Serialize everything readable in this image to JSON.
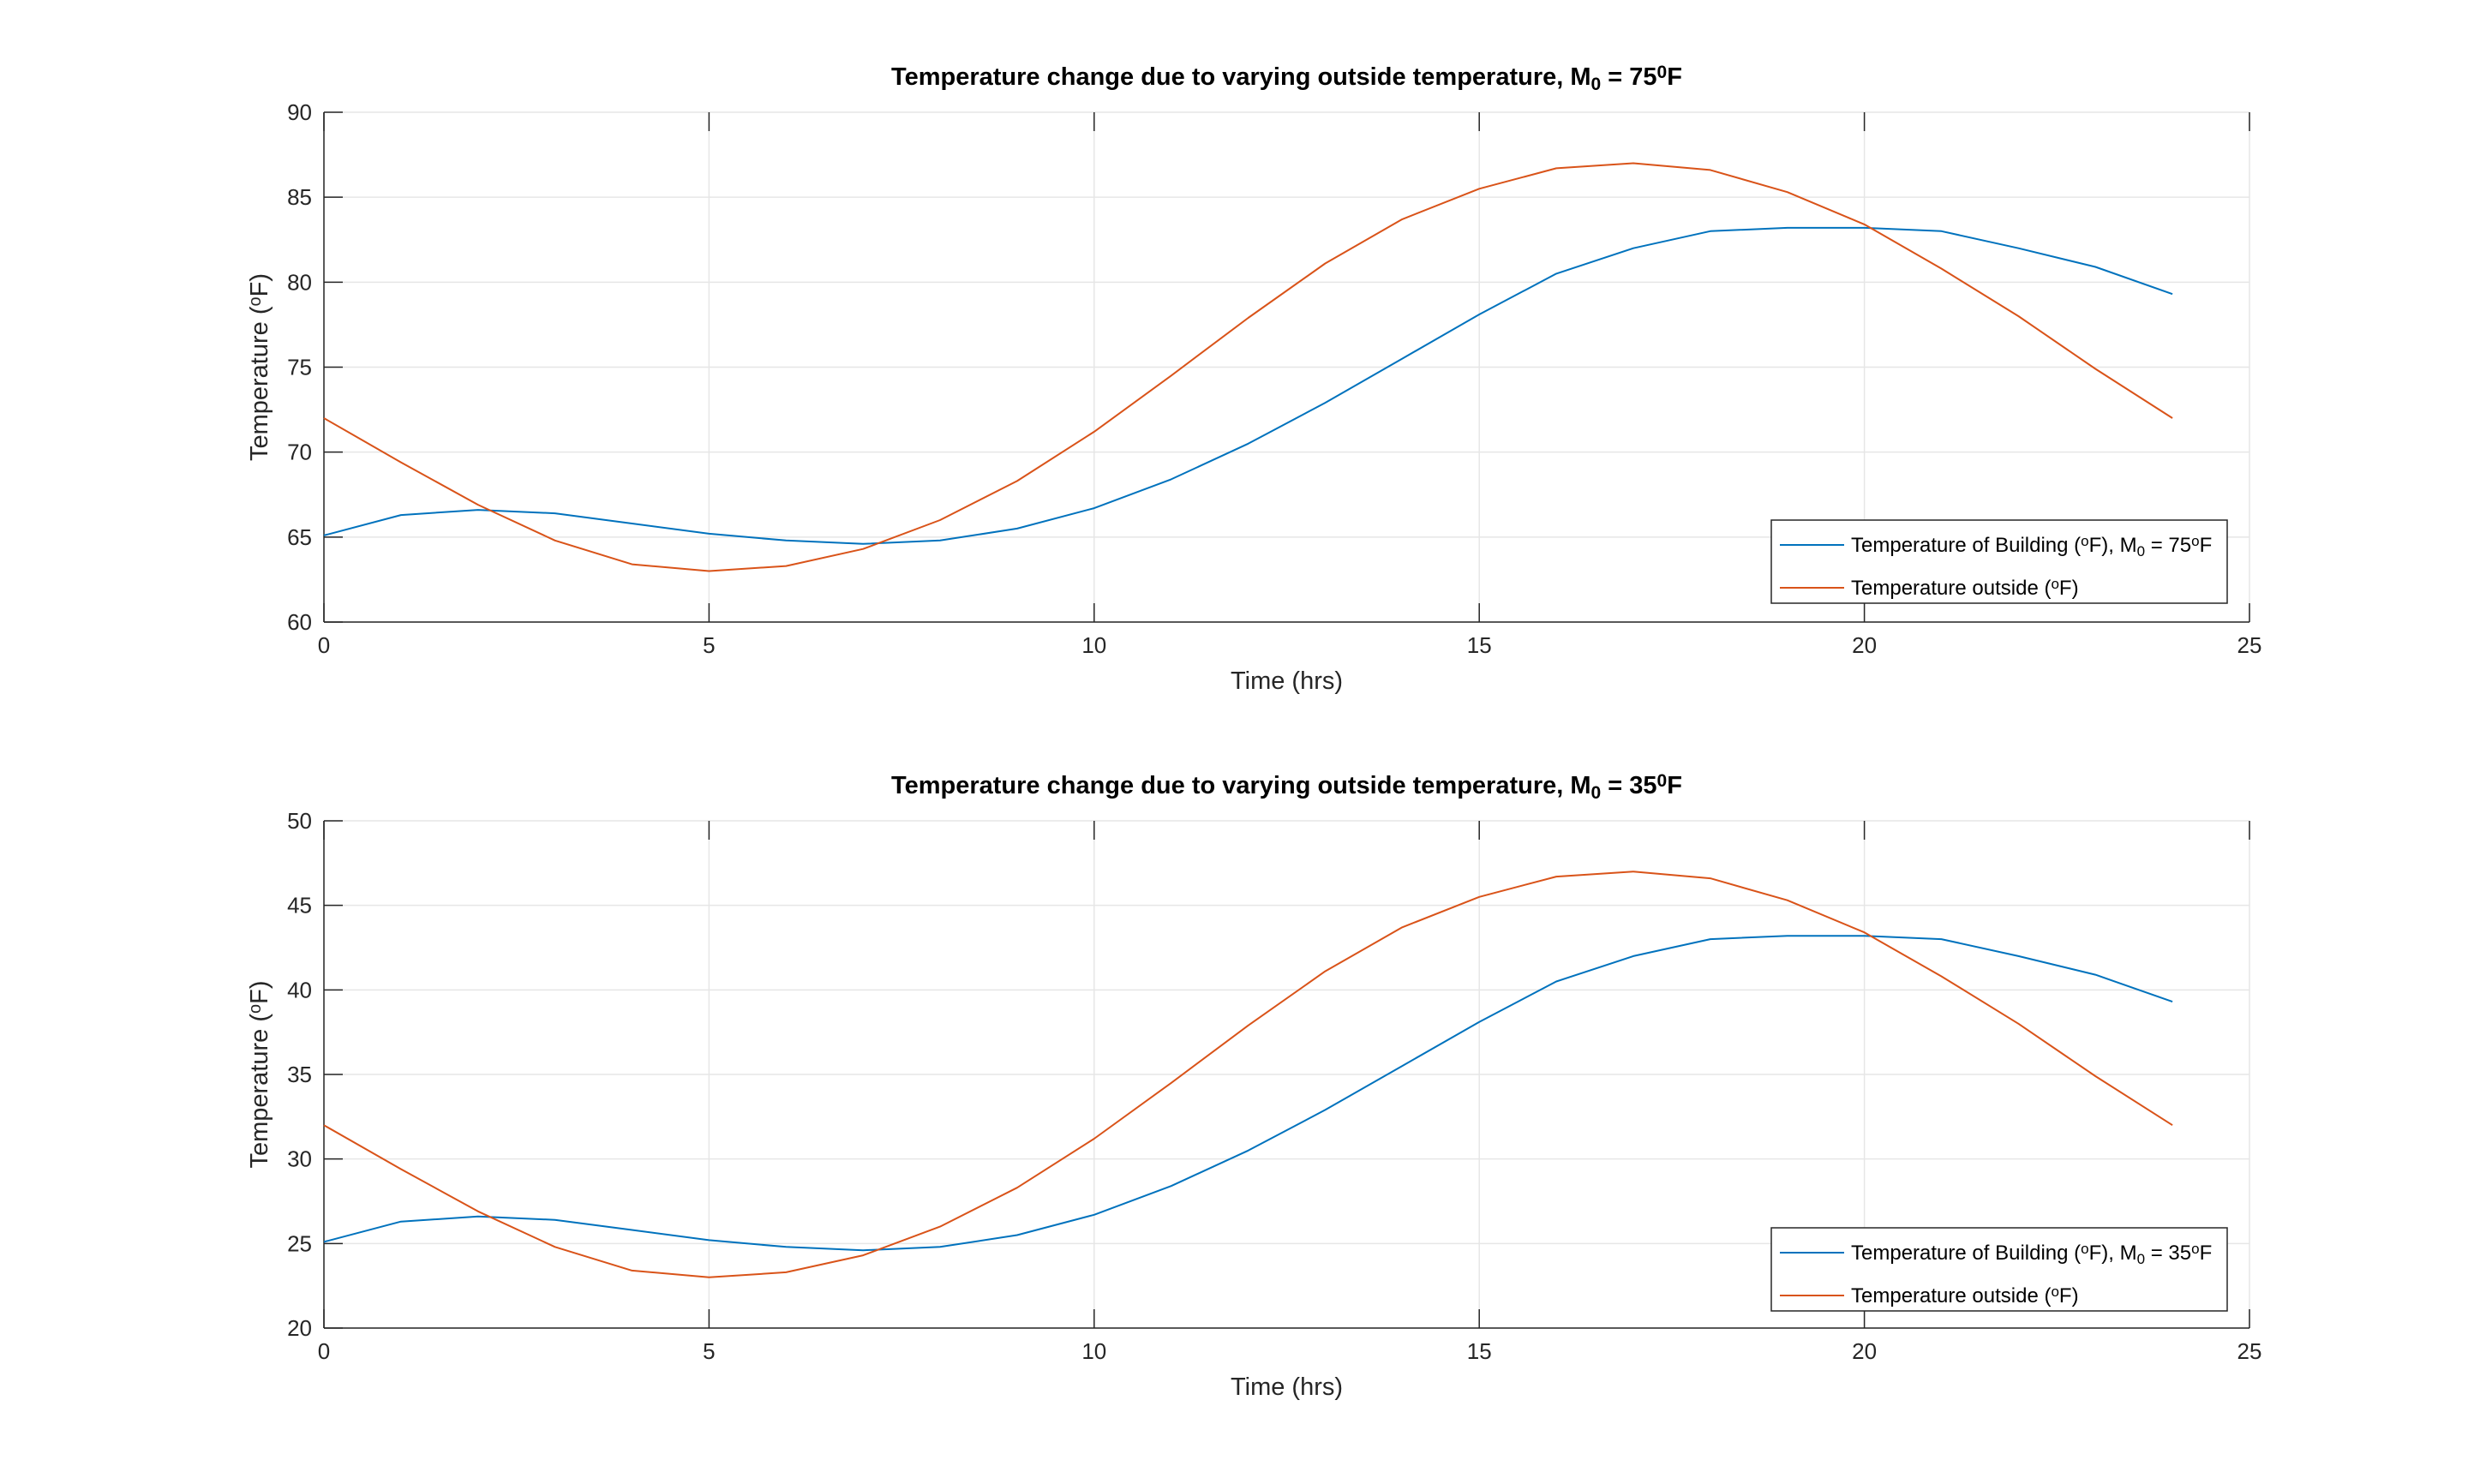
{
  "chart_data": [
    {
      "type": "line",
      "title": {
        "pre": "Temperature change due to varying outside temperature, M",
        "sub": "0",
        "mid": " = 75",
        "sup": "0",
        "post": "F"
      },
      "xlabel": "Time (hrs)",
      "ylabel": {
        "pre": "Temperature (",
        "sup": "o",
        "post": "F)"
      },
      "xlim": [
        0,
        25
      ],
      "ylim": [
        60,
        90
      ],
      "xticks": [
        "0",
        "5",
        "10",
        "15",
        "20",
        "25"
      ],
      "yticks": [
        "60",
        "65",
        "70",
        "75",
        "80",
        "85",
        "90"
      ],
      "grid": true,
      "legend_position": "bottom-right",
      "legend": [
        {
          "pre": "Temperature of Building (",
          "sup1": "o",
          "mid": "F), M",
          "sub": "0",
          "mid2": " = 75",
          "sup2": "o",
          "post": "F"
        },
        {
          "pre": "Temperature outside (",
          "sup1": "o",
          "post": "F)"
        }
      ],
      "series": [
        {
          "color": "#0072BD",
          "x": [
            0,
            1,
            2,
            3,
            4,
            5,
            6,
            7,
            8,
            9,
            10,
            11,
            12,
            13,
            14,
            15,
            16,
            17,
            18,
            19,
            20,
            21,
            22,
            23,
            24
          ],
          "y": [
            65.1,
            66.3,
            66.6,
            66.4,
            65.8,
            65.2,
            64.8,
            64.6,
            64.8,
            65.5,
            66.7,
            68.4,
            70.5,
            72.9,
            75.5,
            78.1,
            80.5,
            82.0,
            83.0,
            83.2,
            83.2,
            83.0,
            82.0,
            80.9,
            79.3
          ]
        },
        {
          "color": "#D95319",
          "x": [
            0,
            1,
            2,
            3,
            4,
            5,
            6,
            7,
            8,
            9,
            10,
            11,
            12,
            13,
            14,
            15,
            16,
            17,
            18,
            19,
            20,
            21,
            22,
            23,
            24
          ],
          "y": [
            72.0,
            69.4,
            66.9,
            64.8,
            63.4,
            63.0,
            63.3,
            64.3,
            66.0,
            68.3,
            71.2,
            74.5,
            77.9,
            81.1,
            83.7,
            85.5,
            86.7,
            87.0,
            86.6,
            85.3,
            83.4,
            80.8,
            78.0,
            74.9,
            72.0
          ]
        }
      ]
    },
    {
      "type": "line",
      "title": {
        "pre": "Temperature change due to varying outside temperature, M",
        "sub": "0",
        "mid": " = 35",
        "sup": "0",
        "post": "F"
      },
      "xlabel": "Time (hrs)",
      "ylabel": {
        "pre": "Temperature (",
        "sup": "o",
        "post": "F)"
      },
      "xlim": [
        0,
        25
      ],
      "ylim": [
        20,
        50
      ],
      "xticks": [
        "0",
        "5",
        "10",
        "15",
        "20",
        "25"
      ],
      "yticks": [
        "20",
        "25",
        "30",
        "35",
        "40",
        "45",
        "50"
      ],
      "grid": true,
      "legend_position": "bottom-right",
      "legend": [
        {
          "pre": "Temperature of Building (",
          "sup1": "o",
          "mid": "F), M",
          "sub": "0",
          "mid2": " = 35",
          "sup2": "o",
          "post": "F"
        },
        {
          "pre": "Temperature outside (",
          "sup1": "o",
          "post": "F)"
        }
      ],
      "series": [
        {
          "color": "#0072BD",
          "x": [
            0,
            1,
            2,
            3,
            4,
            5,
            6,
            7,
            8,
            9,
            10,
            11,
            12,
            13,
            14,
            15,
            16,
            17,
            18,
            19,
            20,
            21,
            22,
            23,
            24
          ],
          "y": [
            25.1,
            26.3,
            26.6,
            26.4,
            25.8,
            25.2,
            24.8,
            24.6,
            24.8,
            25.5,
            26.7,
            28.4,
            30.5,
            32.9,
            35.5,
            38.1,
            40.5,
            42.0,
            43.0,
            43.2,
            43.2,
            43.0,
            42.0,
            40.9,
            39.3
          ]
        },
        {
          "color": "#D95319",
          "x": [
            0,
            1,
            2,
            3,
            4,
            5,
            6,
            7,
            8,
            9,
            10,
            11,
            12,
            13,
            14,
            15,
            16,
            17,
            18,
            19,
            20,
            21,
            22,
            23,
            24
          ],
          "y": [
            32.0,
            29.4,
            26.9,
            24.8,
            23.4,
            23.0,
            23.3,
            24.3,
            26.0,
            28.3,
            31.2,
            34.5,
            37.9,
            41.1,
            43.7,
            45.5,
            46.7,
            47.0,
            46.6,
            45.3,
            43.4,
            40.8,
            38.0,
            34.9,
            32.0
          ]
        }
      ]
    }
  ]
}
